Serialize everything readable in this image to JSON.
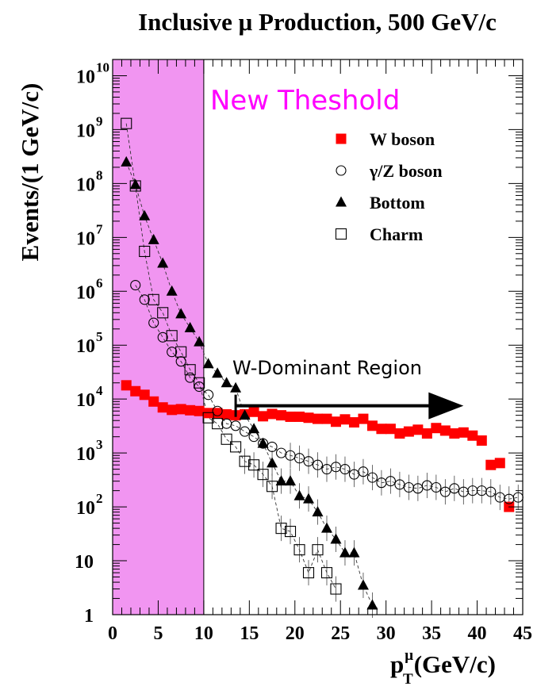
{
  "chart_data": {
    "type": "scatter",
    "title": "Inclusive μ Production, 500 GeV/c",
    "ylabel": "Events/(1 GeV/c)",
    "xlabel_main": "p",
    "xlabel_sup": "μ",
    "xlabel_sub": "T",
    "xlabel_tail": "(GeV/c)",
    "xlim": [
      0,
      45
    ],
    "ylim": [
      1,
      20000000000
    ],
    "yscale": "log",
    "grid": false,
    "legend_position": "top-right",
    "x_ticks": [
      0,
      5,
      10,
      15,
      20,
      25,
      30,
      35,
      40,
      45
    ],
    "x_tick_labels": [
      "0",
      "5",
      "10",
      "15",
      "20",
      "25",
      "30",
      "35",
      "40",
      "45"
    ],
    "y_ticks": [
      1,
      10,
      100,
      1000,
      10000,
      100000,
      1000000,
      10000000,
      100000000,
      1000000000,
      10000000000
    ],
    "y_tick_labels": [
      {
        "base": "1",
        "exp": ""
      },
      {
        "base": "10",
        "exp": ""
      },
      {
        "base": "10",
        "exp": "2"
      },
      {
        "base": "10",
        "exp": "3"
      },
      {
        "base": "10",
        "exp": "4"
      },
      {
        "base": "10",
        "exp": "5"
      },
      {
        "base": "10",
        "exp": "6"
      },
      {
        "base": "10",
        "exp": "7"
      },
      {
        "base": "10",
        "exp": "8"
      },
      {
        "base": "10",
        "exp": "9"
      },
      {
        "base": "10",
        "exp": "10"
      }
    ],
    "shaded_region": {
      "x": [
        0,
        10
      ],
      "color": "#ee82ee",
      "label": "New Theshold",
      "label_color": "#ff00ff"
    },
    "arrow_annotation": {
      "label": "W-Dominant Region",
      "x_start": 13.5,
      "x_end": 38.5,
      "y": 7500
    },
    "series": [
      {
        "name": "W boson",
        "marker": "filled-square",
        "color": "#ff0000",
        "points": [
          [
            1.5,
            18000
          ],
          [
            2.5,
            14000
          ],
          [
            3.5,
            12000
          ],
          [
            4.5,
            9000
          ],
          [
            5.5,
            7000
          ],
          [
            6.5,
            6300
          ],
          [
            7.5,
            6500
          ],
          [
            8.5,
            6200
          ],
          [
            9.5,
            6000
          ],
          [
            10.5,
            5500
          ],
          [
            11.5,
            5500
          ],
          [
            12.5,
            5200
          ],
          [
            13.5,
            5000
          ],
          [
            14.5,
            5200
          ],
          [
            15.5,
            5800
          ],
          [
            16.5,
            4800
          ],
          [
            17.5,
            5300
          ],
          [
            18.5,
            5000
          ],
          [
            19.5,
            4700
          ],
          [
            20.5,
            4700
          ],
          [
            21.5,
            4500
          ],
          [
            22.5,
            4300
          ],
          [
            23.5,
            4300
          ],
          [
            24.5,
            3800
          ],
          [
            25.5,
            4200
          ],
          [
            26.5,
            3700
          ],
          [
            27.5,
            4300
          ],
          [
            28.5,
            3200
          ],
          [
            29.5,
            2800
          ],
          [
            30.5,
            2800
          ],
          [
            31.5,
            2300
          ],
          [
            32.5,
            2500
          ],
          [
            33.5,
            2700
          ],
          [
            34.5,
            2300
          ],
          [
            35.5,
            2900
          ],
          [
            36.5,
            2600
          ],
          [
            37.5,
            2300
          ],
          [
            38.5,
            2400
          ],
          [
            39.5,
            2100
          ],
          [
            40.5,
            1700
          ],
          [
            41.5,
            600
          ],
          [
            42.5,
            650
          ],
          [
            43.5,
            100
          ]
        ]
      },
      {
        "name": "γ/Z boson",
        "marker": "open-circle",
        "color": "#000000",
        "points": [
          [
            2.5,
            1300000
          ],
          [
            3.5,
            700000
          ],
          [
            4.5,
            260000
          ],
          [
            5.5,
            140000
          ],
          [
            6.5,
            75000
          ],
          [
            7.5,
            50000
          ],
          [
            8.5,
            25000
          ],
          [
            9.5,
            17000
          ],
          [
            10.5,
            12000
          ],
          [
            11.5,
            6000
          ],
          [
            12.5,
            3500
          ],
          [
            13.5,
            3200
          ],
          [
            14.5,
            2500
          ],
          [
            15.5,
            2000
          ],
          [
            16.5,
            1500
          ],
          [
            17.5,
            1300
          ],
          [
            18.5,
            1000
          ],
          [
            19.5,
            900
          ],
          [
            20.5,
            800
          ],
          [
            21.5,
            700
          ],
          [
            22.5,
            600
          ],
          [
            23.5,
            500
          ],
          [
            24.5,
            550
          ],
          [
            25.5,
            500
          ],
          [
            26.5,
            400
          ],
          [
            27.5,
            450
          ],
          [
            28.5,
            350
          ],
          [
            29.5,
            280
          ],
          [
            30.5,
            300
          ],
          [
            31.5,
            260
          ],
          [
            32.5,
            230
          ],
          [
            33.5,
            220
          ],
          [
            34.5,
            250
          ],
          [
            35.5,
            230
          ],
          [
            36.5,
            190
          ],
          [
            37.5,
            220
          ],
          [
            38.5,
            190
          ],
          [
            39.5,
            200
          ],
          [
            40.5,
            200
          ],
          [
            41.5,
            190
          ],
          [
            42.5,
            150
          ],
          [
            43.5,
            140
          ],
          [
            44.5,
            150
          ]
        ]
      },
      {
        "name": "Bottom",
        "marker": "filled-triangle",
        "color": "#000000",
        "points": [
          [
            1.5,
            250000000
          ],
          [
            2.5,
            95000000
          ],
          [
            3.5,
            25000000
          ],
          [
            4.5,
            9000000
          ],
          [
            5.5,
            3300000
          ],
          [
            6.5,
            1000000
          ],
          [
            7.5,
            380000
          ],
          [
            8.5,
            210000
          ],
          [
            9.5,
            115000
          ],
          [
            10.5,
            45000
          ],
          [
            11.5,
            30000
          ],
          [
            12.5,
            20000
          ],
          [
            13.5,
            16000
          ],
          [
            14.5,
            5000
          ],
          [
            15.5,
            2800
          ],
          [
            16.5,
            1500
          ],
          [
            17.5,
            650
          ],
          [
            18.5,
            300
          ],
          [
            19.5,
            300
          ],
          [
            20.5,
            160
          ],
          [
            21.5,
            140
          ],
          [
            22.5,
            80
          ],
          [
            23.5,
            40
          ],
          [
            24.5,
            25
          ],
          [
            25.5,
            14
          ],
          [
            26.5,
            14
          ],
          [
            27.5,
            3.5
          ],
          [
            28.5,
            1.5
          ]
        ]
      },
      {
        "name": "Charm",
        "marker": "open-square",
        "color": "#000000",
        "points": [
          [
            1.5,
            1300000000
          ],
          [
            2.5,
            90000000
          ],
          [
            3.5,
            5500000
          ],
          [
            4.5,
            700000
          ],
          [
            5.5,
            400000
          ],
          [
            6.5,
            150000
          ],
          [
            7.5,
            75000
          ],
          [
            8.5,
            35000
          ],
          [
            9.5,
            20000
          ],
          [
            10.5,
            4500
          ],
          [
            11.5,
            3500
          ],
          [
            12.5,
            1800
          ],
          [
            13.5,
            1300
          ],
          [
            14.5,
            700
          ],
          [
            15.5,
            600
          ],
          [
            16.5,
            400
          ],
          [
            17.5,
            240
          ],
          [
            18.5,
            40
          ],
          [
            19.5,
            35
          ],
          [
            20.5,
            16
          ],
          [
            21.5,
            6
          ],
          [
            22.5,
            16
          ],
          [
            23.5,
            6
          ],
          [
            24.5,
            3
          ]
        ]
      }
    ]
  }
}
